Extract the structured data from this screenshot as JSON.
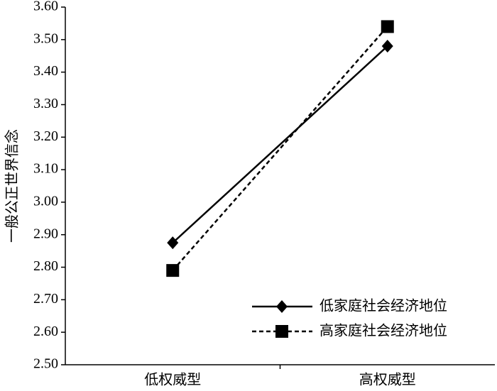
{
  "chart_data": {
    "type": "line",
    "y_label": "一般公正世界信念",
    "categories": [
      "低权威型",
      "高权威型"
    ],
    "series": [
      {
        "name": "低家庭社会经济地位",
        "color": "#000000",
        "line_style": "solid",
        "marker": "diamond",
        "values": [
          2.875,
          3.48
        ]
      },
      {
        "name": "高家庭社会经济地位",
        "color": "#000000",
        "line_style": "dashed",
        "marker": "square",
        "values": [
          2.79,
          3.54
        ]
      }
    ],
    "ylim": [
      2.5,
      3.6
    ],
    "yticks": [
      {
        "value": 2.5,
        "label": "2.50"
      },
      {
        "value": 2.6,
        "label": "2.60"
      },
      {
        "value": 2.7,
        "label": "2.70"
      },
      {
        "value": 2.8,
        "label": "2.80"
      },
      {
        "value": 2.9,
        "label": "2.90"
      },
      {
        "value": 3.0,
        "label": "3.00"
      },
      {
        "value": 3.1,
        "label": "3.10"
      },
      {
        "value": 3.2,
        "label": "3.20"
      },
      {
        "value": 3.3,
        "label": "3.30"
      },
      {
        "value": 3.4,
        "label": "3.40"
      },
      {
        "value": 3.5,
        "label": "3.50"
      },
      {
        "value": 3.6,
        "label": "3.60"
      }
    ],
    "grid": false,
    "legend": "lower right"
  }
}
